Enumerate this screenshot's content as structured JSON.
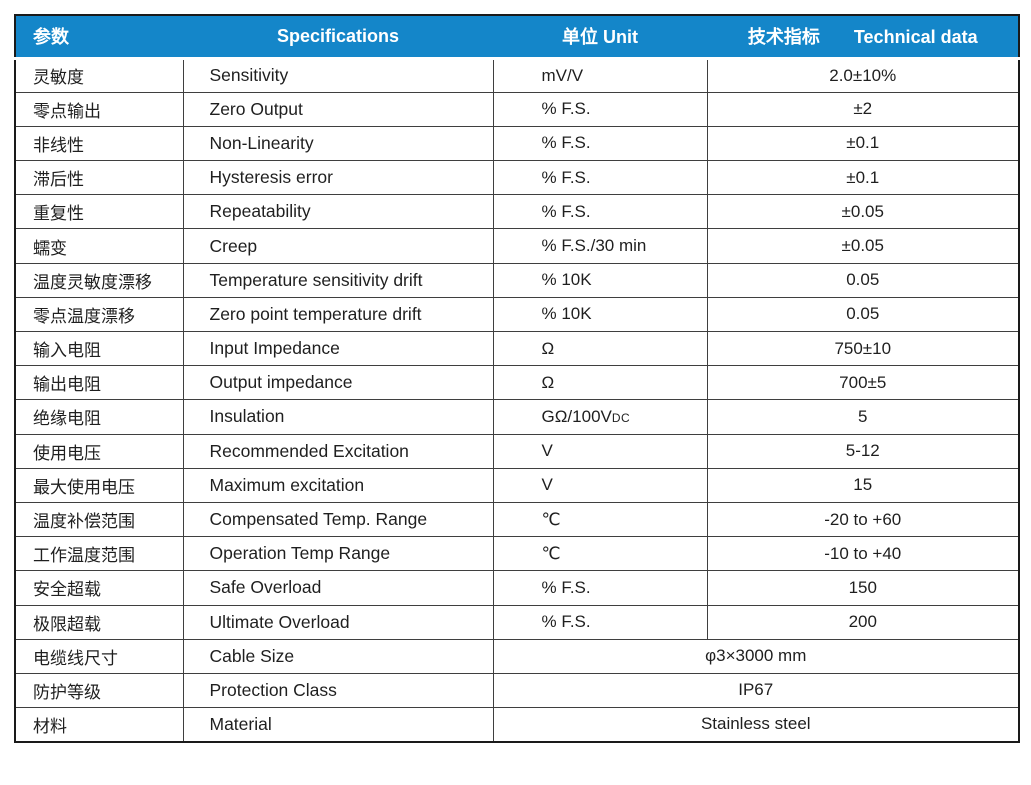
{
  "page": {
    "background_color": "#ffffff",
    "accent_color": "#1486c9",
    "header_text_color": "#ffffff",
    "body_text_color": "#1f1f1f"
  },
  "table": {
    "header": {
      "param": "参数",
      "spec": "Specifications",
      "unit": "单位 Unit",
      "tech_zh": "技术指标",
      "tech_en": "Technical data"
    },
    "rows": [
      {
        "param": "灵敏度",
        "spec": "Sensitivity",
        "unit": "mV/V",
        "value": "2.0±10%"
      },
      {
        "param": "零点输出",
        "spec": "Zero Output",
        "unit": "% F.S.",
        "value": "±2"
      },
      {
        "param": "非线性",
        "spec": "Non-Linearity",
        "unit": "% F.S.",
        "value": "±0.1"
      },
      {
        "param": "滞后性",
        "spec": "Hysteresis error",
        "unit": "% F.S.",
        "value": "±0.1"
      },
      {
        "param": "重复性",
        "spec": "Repeatability",
        "unit": "% F.S.",
        "value": "±0.05"
      },
      {
        "param": "蠕变",
        "spec": "Creep",
        "unit": "% F.S./30 min",
        "value": "±0.05"
      },
      {
        "param": "温度灵敏度漂移",
        "spec": "Temperature sensitivity drift",
        "unit": "% 10K",
        "value": "0.05"
      },
      {
        "param": "零点温度漂移",
        "spec": "Zero point temperature drift",
        "unit": "% 10K",
        "value": "0.05"
      },
      {
        "param": "输入电阻",
        "spec": "Input Impedance",
        "unit": "Ω",
        "value": "750±10"
      },
      {
        "param": "输出电阻",
        "spec": "Output impedance",
        "unit": "Ω",
        "value": "700±5"
      },
      {
        "param": "绝缘电阻",
        "spec": "Insulation",
        "unit": "GΩ/100V",
        "unit_sub": "DC",
        "value": "5"
      },
      {
        "param": "使用电压",
        "spec": "Recommended Excitation",
        "unit": "V",
        "value": "5-12"
      },
      {
        "param": "最大使用电压",
        "spec": "Maximum excitation",
        "unit": "V",
        "value": "15"
      },
      {
        "param": "温度补偿范围",
        "spec": "Compensated Temp. Range",
        "unit": "℃",
        "value": "-20 to +60"
      },
      {
        "param": "工作温度范围",
        "spec": "Operation Temp Range",
        "unit": "℃",
        "value": "-10 to +40"
      },
      {
        "param": "安全超载",
        "spec": "Safe Overload",
        "unit": "% F.S.",
        "value": "150"
      },
      {
        "param": "极限超载",
        "spec": "Ultimate Overload",
        "unit": "% F.S.",
        "value": "200"
      },
      {
        "param": "电缆线尺寸",
        "spec": "Cable Size",
        "merged_value": "φ3×3000 mm"
      },
      {
        "param": "防护等级",
        "spec": "Protection Class",
        "merged_value": "IP67"
      },
      {
        "param": "材料",
        "spec": "Material",
        "merged_value": "Stainless steel"
      }
    ]
  }
}
